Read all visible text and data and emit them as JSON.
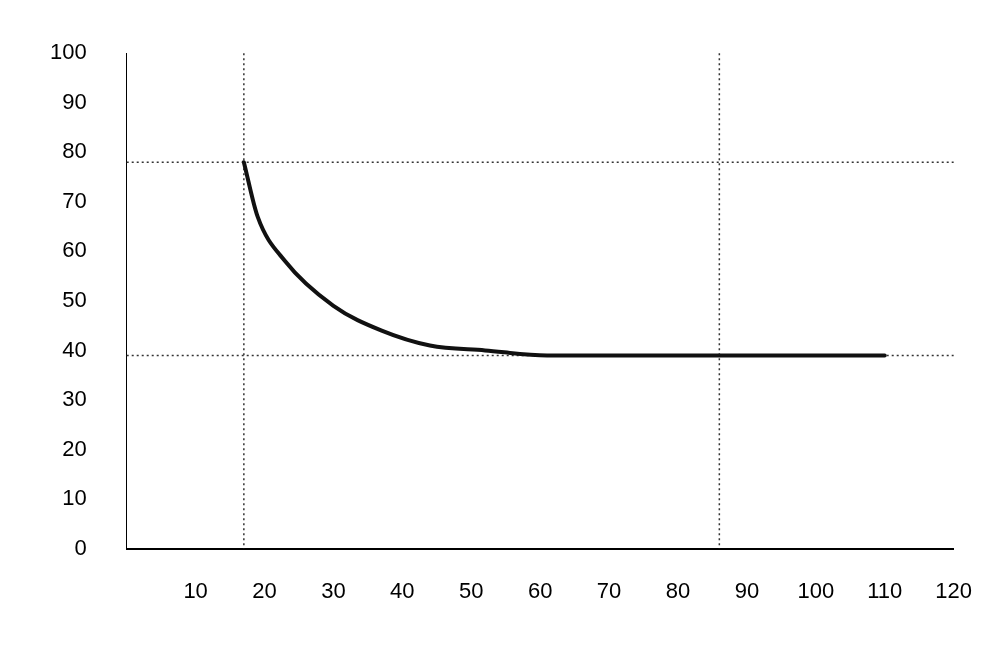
{
  "chart_data": {
    "type": "line",
    "x": [
      17,
      19,
      23,
      30,
      37,
      44,
      52,
      61,
      110
    ],
    "series": [
      {
        "color": "#111111",
        "values": [
          78,
          67,
          58,
          49,
          44,
          41,
          40,
          39,
          39
        ]
      }
    ],
    "xlim": [
      0,
      120
    ],
    "xticks": [
      10,
      20,
      30,
      40,
      50,
      60,
      70,
      80,
      90,
      100,
      110,
      120
    ],
    "ylim": [
      0,
      100
    ],
    "yticks": [
      0,
      10,
      20,
      30,
      40,
      50,
      60,
      70,
      80,
      90,
      100
    ],
    "grid": false,
    "legend": false,
    "marker": "none",
    "line_style": "solid",
    "ref_lines": [
      {
        "axis": "y",
        "value": 78,
        "line_style": "dotted",
        "color": "#333333"
      },
      {
        "axis": "y",
        "value": 39,
        "line_style": "dotted",
        "color": "#333333"
      },
      {
        "axis": "x",
        "value": 17,
        "line_style": "dotted",
        "color": "#333333"
      },
      {
        "axis": "x",
        "value": 86,
        "line_style": "dotted",
        "color": "#333333"
      }
    ]
  }
}
